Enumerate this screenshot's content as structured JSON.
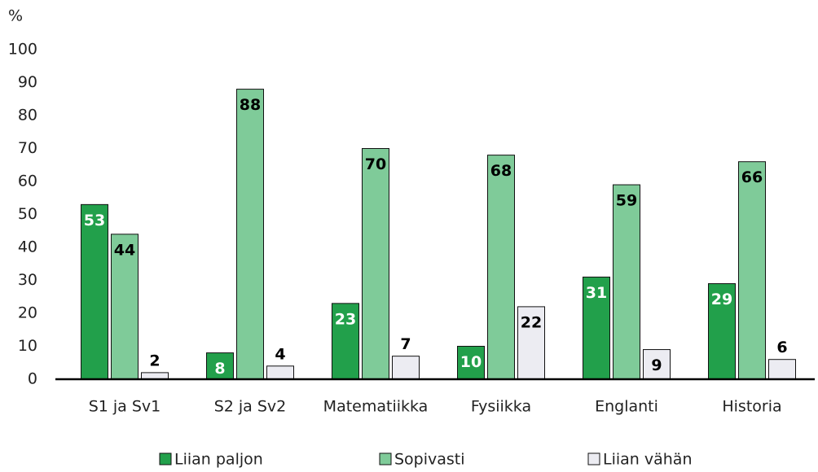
{
  "chart_data": {
    "type": "bar",
    "y_unit": "%",
    "categories": [
      "S1 ja Sv1",
      "S2 ja Sv2",
      "Matematiikka",
      "Fysiikka",
      "Englanti",
      "Historia"
    ],
    "series": [
      {
        "name": "Liian paljon",
        "color": "#22a04b",
        "label_color": "#ffffff",
        "values": [
          53,
          8,
          23,
          10,
          31,
          29
        ]
      },
      {
        "name": "Sopivasti",
        "color": "#7fcb99",
        "label_color": "#000000",
        "values": [
          44,
          88,
          70,
          68,
          59,
          66
        ]
      },
      {
        "name": "Liian vähän",
        "color": "#ececf2",
        "label_color": "#000000",
        "values": [
          2,
          4,
          7,
          22,
          9,
          6
        ]
      }
    ],
    "ylim": [
      0,
      100
    ],
    "yticks": [
      0,
      10,
      20,
      30,
      40,
      50,
      60,
      70,
      80,
      90,
      100
    ],
    "grid": false,
    "legend": "bottom"
  }
}
